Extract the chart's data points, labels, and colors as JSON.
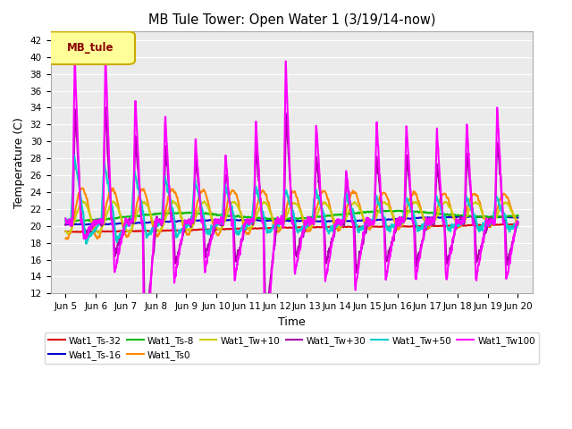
{
  "title": "MB Tule Tower: Open Water 1 (3/19/14-now)",
  "xlabel": "Time",
  "ylabel": "Temperature (C)",
  "xlim_days": [
    4.5,
    20.5
  ],
  "ylim": [
    12,
    43
  ],
  "yticks": [
    12,
    14,
    16,
    18,
    20,
    22,
    24,
    26,
    28,
    30,
    32,
    34,
    36,
    38,
    40,
    42
  ],
  "xtick_labels": [
    "Jun 5",
    "Jun 6",
    "Jun 7",
    "Jun 8",
    "Jun 9",
    "Jun 10",
    "Jun 11",
    "Jun 12",
    "Jun 13",
    "Jun 14",
    "Jun 15",
    "Jun 16",
    "Jun 17",
    "Jun 18",
    "Jun 19",
    "Jun 20"
  ],
  "xtick_positions": [
    5,
    6,
    7,
    8,
    9,
    10,
    11,
    12,
    13,
    14,
    15,
    16,
    17,
    18,
    19,
    20
  ],
  "legend_box_label": "MB_tule",
  "legend_box_color": "#ffff99",
  "legend_box_border": "#ccaa00",
  "legend_box_text_color": "#880000",
  "background_plot": "#ebebeb",
  "grid_color": "#ffffff",
  "series": [
    {
      "label": "Wat1_Ts-32",
      "color": "#dd0000",
      "lw": 1.5
    },
    {
      "label": "Wat1_Ts-16",
      "color": "#0000cc",
      "lw": 1.5
    },
    {
      "label": "Wat1_Ts-8",
      "color": "#00bb00",
      "lw": 1.5
    },
    {
      "label": "Wat1_Ts0",
      "color": "#ff8800",
      "lw": 1.5
    },
    {
      "label": "Wat1_Tw+10",
      "color": "#cccc00",
      "lw": 1.5
    },
    {
      "label": "Wat1_Tw+30",
      "color": "#aa00aa",
      "lw": 1.5
    },
    {
      "label": "Wat1_Tw+50",
      "color": "#00cccc",
      "lw": 1.5
    },
    {
      "label": "Wat1_Tw100",
      "color": "#ff00ff",
      "lw": 1.5
    }
  ]
}
